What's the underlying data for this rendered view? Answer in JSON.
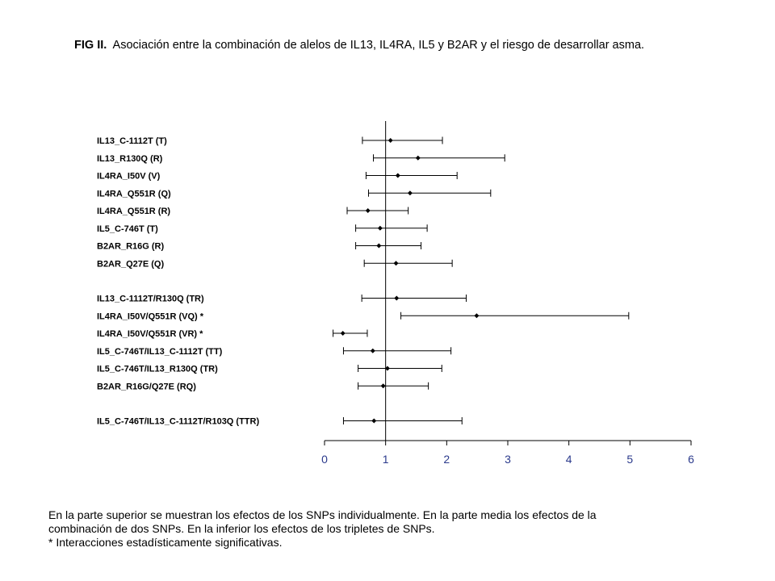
{
  "title": {
    "prefix": "FIG II.",
    "text": "Asociación entre la combinación de alelos de IL13, IL4RA, IL5 y B2AR y el riesgo de desarrollar asma."
  },
  "caption": [
    "En la parte superior se muestran los efectos de los SNPs individualmente. En la parte media los efectos de la",
    "combinación de dos SNPs. En la inferior los efectos de los tripletes de SNPs.",
    "* Interacciones estadísticamente significativas."
  ],
  "colors": {
    "axis_ticks": "#2b3a8c",
    "marks": "#000000"
  },
  "chart_data": {
    "type": "forest",
    "xlim": [
      0,
      6
    ],
    "xticks": [
      0,
      1,
      2,
      3,
      4,
      5,
      6
    ],
    "reference_line": 1,
    "groups": [
      {
        "rows": [
          {
            "label": "IL13_C-1112T (T)",
            "estimate": 1.08,
            "lower": 0.62,
            "upper": 1.93
          },
          {
            "label": "IL13_R130Q (R)",
            "estimate": 1.53,
            "lower": 0.8,
            "upper": 2.95
          },
          {
            "label": "IL4RA_I50V (V)",
            "estimate": 1.2,
            "lower": 0.68,
            "upper": 2.17
          },
          {
            "label": "IL4RA_Q551R (Q)",
            "estimate": 1.4,
            "lower": 0.72,
            "upper": 2.72
          },
          {
            "label": "IL4RA_Q551R (R)",
            "estimate": 0.71,
            "lower": 0.37,
            "upper": 1.37
          },
          {
            "label": "IL5_C-746T (T)",
            "estimate": 0.91,
            "lower": 0.51,
            "upper": 1.68
          },
          {
            "label": "B2AR_R16G (R)",
            "estimate": 0.89,
            "lower": 0.51,
            "upper": 1.58
          },
          {
            "label": "B2AR_Q27E (Q)",
            "estimate": 1.17,
            "lower": 0.65,
            "upper": 2.09
          }
        ]
      },
      {
        "rows": [
          {
            "label": "IL13_C-1112T/R130Q (TR)",
            "estimate": 1.18,
            "lower": 0.61,
            "upper": 2.32
          },
          {
            "label": "IL4RA_I50V/Q551R (VQ) *",
            "estimate": 2.49,
            "lower": 1.25,
            "upper": 4.98
          },
          {
            "label": "IL4RA_I50V/Q551R (VR) *",
            "estimate": 0.3,
            "lower": 0.14,
            "upper": 0.7
          },
          {
            "label": "IL5_C-746T/IL13_C-1112T  (TT)",
            "estimate": 0.79,
            "lower": 0.31,
            "upper": 2.07
          },
          {
            "label": "IL5_C-746T/IL13_R130Q  (TR)",
            "estimate": 1.03,
            "lower": 0.55,
            "upper": 1.92
          },
          {
            "label": "B2AR_R16G/Q27E (RQ)",
            "estimate": 0.96,
            "lower": 0.55,
            "upper": 1.7
          }
        ]
      },
      {
        "rows": [
          {
            "label": "IL5_C-746T/IL13_C-1112T/R103Q (TTR)",
            "estimate": 0.81,
            "lower": 0.31,
            "upper": 2.25
          }
        ]
      }
    ]
  }
}
